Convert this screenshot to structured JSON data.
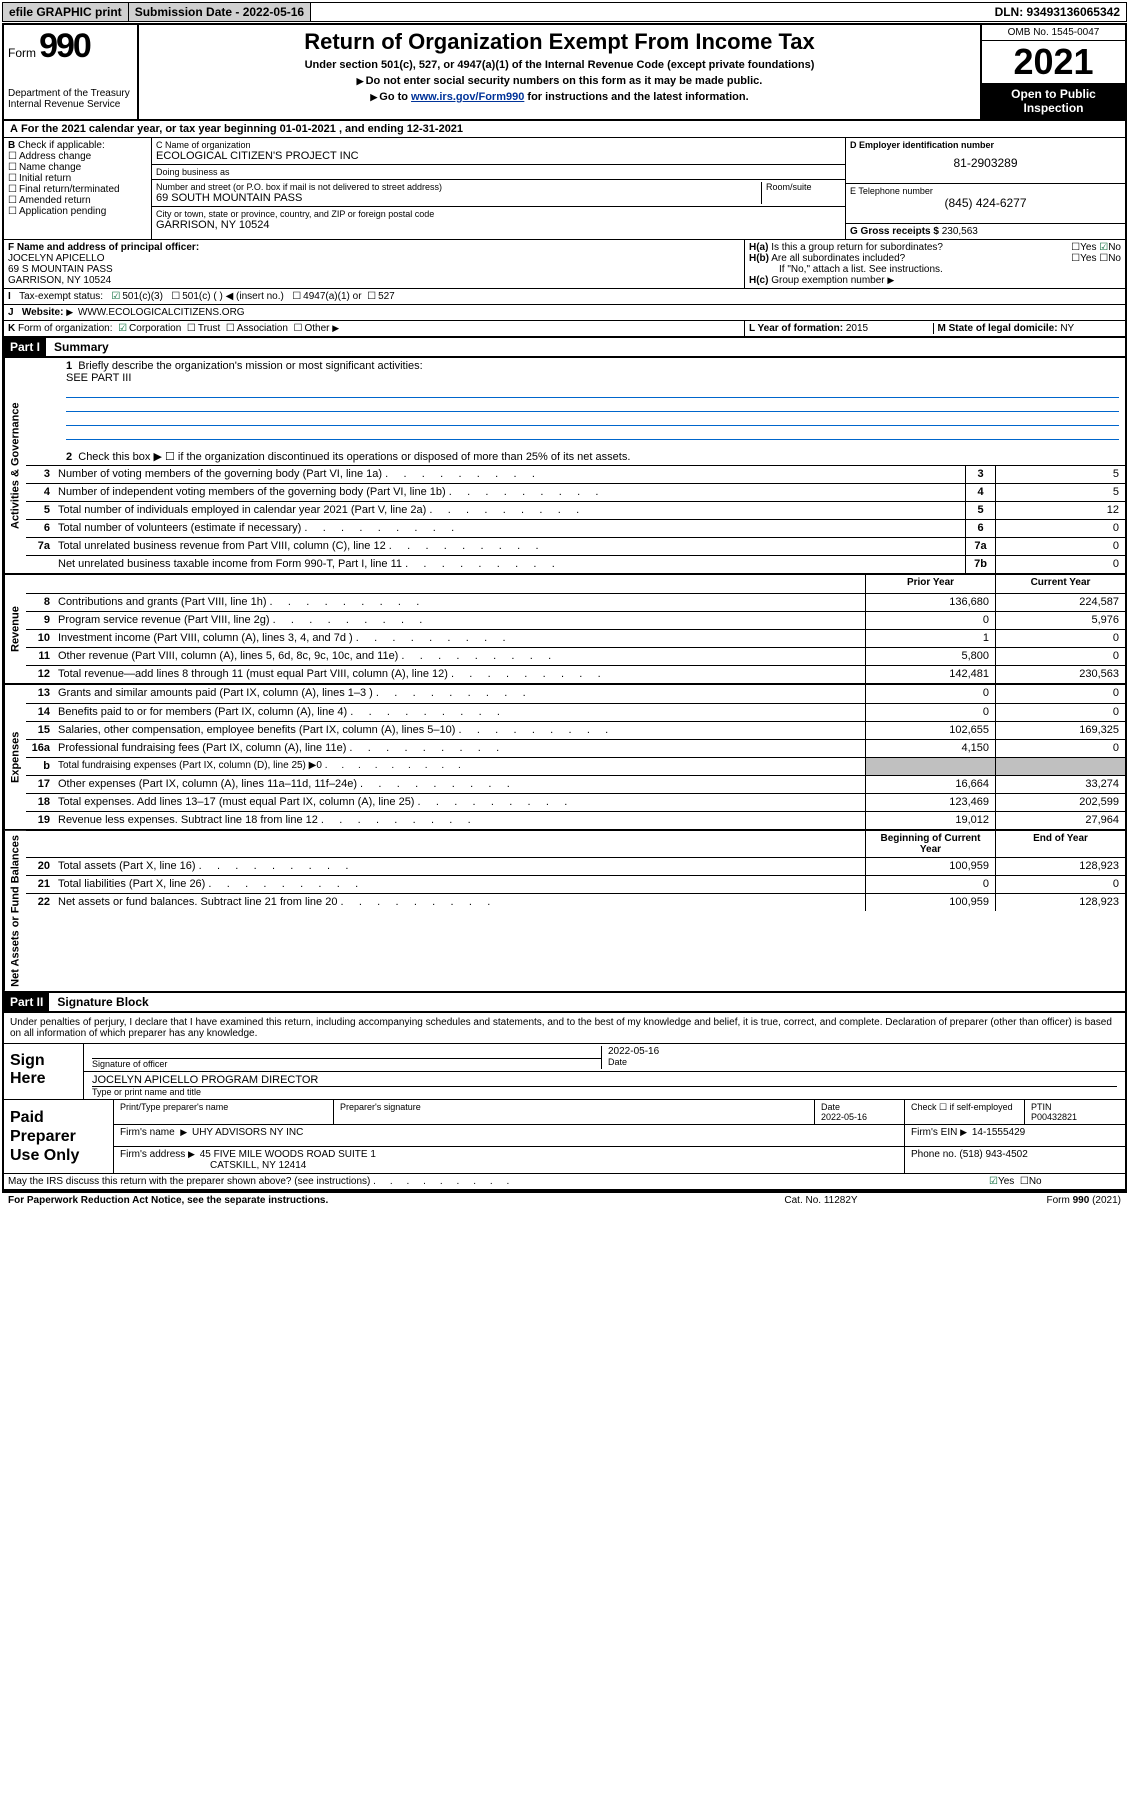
{
  "topbar": {
    "efile": "efile GRAPHIC print",
    "submission": "Submission Date - 2022-05-16",
    "dln": "DLN: 93493136065342"
  },
  "header": {
    "form_word": "Form",
    "form_num": "990",
    "agency": "Department of the Treasury\nInternal Revenue Service",
    "title": "Return of Organization Exempt From Income Tax",
    "sub": "Under section 501(c), 527, or 4947(a)(1) of the Internal Revenue Code (except private foundations)",
    "note1": "Do not enter social security numbers on this form as it may be made public.",
    "note2_pre": "Go to ",
    "note2_url": "www.irs.gov/Form990",
    "note2_post": " for instructions and the latest information.",
    "omb": "OMB No. 1545-0047",
    "year": "2021",
    "open": "Open to Public Inspection"
  },
  "row_a": "For the 2021 calendar year, or tax year beginning 01-01-2021   , and ending 12-31-2021",
  "b": {
    "label": "Check if applicable:",
    "opts": [
      "Address change",
      "Name change",
      "Initial return",
      "Final return/terminated",
      "Amended return",
      "Application pending"
    ]
  },
  "c": {
    "name_lbl": "C Name of organization",
    "name": "ECOLOGICAL CITIZEN'S PROJECT INC",
    "dba_lbl": "Doing business as",
    "dba": "",
    "addr_lbl": "Number and street (or P.O. box if mail is not delivered to street address)",
    "room_lbl": "Room/suite",
    "addr": "69 SOUTH MOUNTAIN PASS",
    "city_lbl": "City or town, state or province, country, and ZIP or foreign postal code",
    "city": "GARRISON, NY  10524"
  },
  "d": {
    "lbl": "D Employer identification number",
    "val": "81-2903289"
  },
  "e": {
    "lbl": "E Telephone number",
    "val": "(845) 424-6277"
  },
  "g": {
    "lbl": "G Gross receipts $",
    "val": "230,563"
  },
  "f": {
    "lbl": "F Name and address of principal officer:",
    "name": "JOCELYN APICELLO",
    "addr1": "69 S MOUNTAIN PASS",
    "addr2": "GARRISON, NY  10524"
  },
  "h": {
    "a": "Is this a group return for subordinates?",
    "a_yes": "Yes",
    "a_no": "No",
    "b": "Are all subordinates included?",
    "b_note": "If \"No,\" attach a list. See instructions.",
    "c": "Group exemption number"
  },
  "i": {
    "lbl": "Tax-exempt status:",
    "opts": [
      "501(c)(3)",
      "501(c) (  ) ◀ (insert no.)",
      "4947(a)(1) or",
      "527"
    ]
  },
  "j": {
    "lbl": "Website:",
    "val": "WWW.ECOLOGICALCITIZENS.ORG"
  },
  "k": {
    "lbl": "Form of organization:",
    "opts": [
      "Corporation",
      "Trust",
      "Association",
      "Other"
    ]
  },
  "l": {
    "lbl": "L Year of formation:",
    "val": "2015"
  },
  "m": {
    "lbl": "M State of legal domicile:",
    "val": "NY"
  },
  "parts": {
    "p1": "Part I",
    "p1t": "Summary",
    "p2": "Part II",
    "p2t": "Signature Block"
  },
  "summary": {
    "q1": "Briefly describe the organization's mission or most significant activities:",
    "q1v": "SEE PART III",
    "q2": "Check this box ▶ ☐  if the organization discontinued its operations or disposed of more than 25% of its net assets.",
    "rows_gov": [
      {
        "n": "3",
        "t": "Number of voting members of the governing body (Part VI, line 1a)",
        "b": "3",
        "v": "5"
      },
      {
        "n": "4",
        "t": "Number of independent voting members of the governing body (Part VI, line 1b)",
        "b": "4",
        "v": "5"
      },
      {
        "n": "5",
        "t": "Total number of individuals employed in calendar year 2021 (Part V, line 2a)",
        "b": "5",
        "v": "12"
      },
      {
        "n": "6",
        "t": "Total number of volunteers (estimate if necessary)",
        "b": "6",
        "v": "0"
      },
      {
        "n": "7a",
        "t": "Total unrelated business revenue from Part VIII, column (C), line 12",
        "b": "7a",
        "v": "0"
      },
      {
        "n": "",
        "t": "Net unrelated business taxable income from Form 990-T, Part I, line 11",
        "b": "7b",
        "v": "0"
      }
    ],
    "col_prior": "Prior Year",
    "col_curr": "Current Year",
    "rows_rev": [
      {
        "n": "8",
        "t": "Contributions and grants (Part VIII, line 1h)",
        "p": "136,680",
        "c": "224,587"
      },
      {
        "n": "9",
        "t": "Program service revenue (Part VIII, line 2g)",
        "p": "0",
        "c": "5,976"
      },
      {
        "n": "10",
        "t": "Investment income (Part VIII, column (A), lines 3, 4, and 7d )",
        "p": "1",
        "c": "0"
      },
      {
        "n": "11",
        "t": "Other revenue (Part VIII, column (A), lines 5, 6d, 8c, 9c, 10c, and 11e)",
        "p": "5,800",
        "c": "0"
      },
      {
        "n": "12",
        "t": "Total revenue—add lines 8 through 11 (must equal Part VIII, column (A), line 12)",
        "p": "142,481",
        "c": "230,563"
      }
    ],
    "rows_exp": [
      {
        "n": "13",
        "t": "Grants and similar amounts paid (Part IX, column (A), lines 1–3 )",
        "p": "0",
        "c": "0"
      },
      {
        "n": "14",
        "t": "Benefits paid to or for members (Part IX, column (A), line 4)",
        "p": "0",
        "c": "0"
      },
      {
        "n": "15",
        "t": "Salaries, other compensation, employee benefits (Part IX, column (A), lines 5–10)",
        "p": "102,655",
        "c": "169,325"
      },
      {
        "n": "16a",
        "t": "Professional fundraising fees (Part IX, column (A), line 11e)",
        "p": "4,150",
        "c": "0"
      },
      {
        "n": "b",
        "t": "Total fundraising expenses (Part IX, column (D), line 25) ▶0",
        "p": "",
        "c": "",
        "shade": true
      },
      {
        "n": "17",
        "t": "Other expenses (Part IX, column (A), lines 11a–11d, 11f–24e)",
        "p": "16,664",
        "c": "33,274"
      },
      {
        "n": "18",
        "t": "Total expenses. Add lines 13–17 (must equal Part IX, column (A), line 25)",
        "p": "123,469",
        "c": "202,599"
      },
      {
        "n": "19",
        "t": "Revenue less expenses. Subtract line 18 from line 12",
        "p": "19,012",
        "c": "27,964"
      }
    ],
    "col_beg": "Beginning of Current Year",
    "col_end": "End of Year",
    "rows_net": [
      {
        "n": "20",
        "t": "Total assets (Part X, line 16)",
        "p": "100,959",
        "c": "128,923"
      },
      {
        "n": "21",
        "t": "Total liabilities (Part X, line 26)",
        "p": "0",
        "c": "0"
      },
      {
        "n": "22",
        "t": "Net assets or fund balances. Subtract line 21 from line 20",
        "p": "100,959",
        "c": "128,923"
      }
    ]
  },
  "vtabs": {
    "gov": "Activities & Governance",
    "rev": "Revenue",
    "exp": "Expenses",
    "net": "Net Assets or Fund Balances"
  },
  "sig": {
    "decl": "Under penalties of perjury, I declare that I have examined this return, including accompanying schedules and statements, and to the best of my knowledge and belief, it is true, correct, and complete. Declaration of preparer (other than officer) is based on all information of which preparer has any knowledge.",
    "sign_here": "Sign Here",
    "sig_officer": "Signature of officer",
    "date": "Date",
    "date_v": "2022-05-16",
    "name_title": "JOCELYN APICELLO  PROGRAM DIRECTOR",
    "name_title_lbl": "Type or print name and title"
  },
  "prep": {
    "label": "Paid Preparer Use Only",
    "h_name": "Print/Type preparer's name",
    "h_sig": "Preparer's signature",
    "h_date": "Date",
    "date_v": "2022-05-16",
    "h_chk": "Check ☐ if self-employed",
    "h_ptin": "PTIN",
    "ptin": "P00432821",
    "firm_name_lbl": "Firm's name",
    "firm_name": "UHY ADVISORS NY INC",
    "firm_ein_lbl": "Firm's EIN",
    "firm_ein": "14-1555429",
    "firm_addr_lbl": "Firm's address",
    "firm_addr": "45 FIVE MILE WOODS ROAD SUITE 1",
    "firm_city": "CATSKILL, NY  12414",
    "phone_lbl": "Phone no.",
    "phone": "(518) 943-4502"
  },
  "discuss": {
    "q": "May the IRS discuss this return with the preparer shown above? (see instructions)",
    "yes": "Yes",
    "no": "No"
  },
  "footer": {
    "l": "For Paperwork Reduction Act Notice, see the separate instructions.",
    "c": "Cat. No. 11282Y",
    "r": "Form 990 (2021)"
  }
}
